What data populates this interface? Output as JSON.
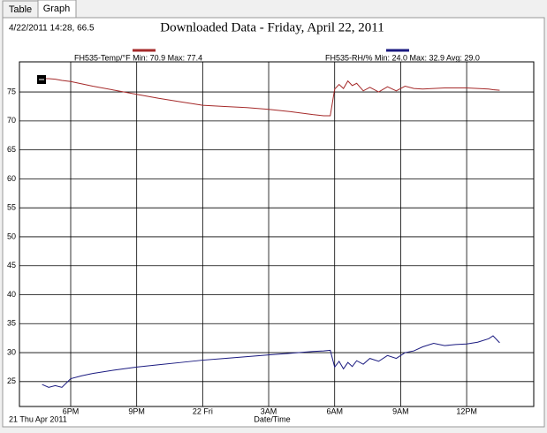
{
  "tabs": [
    "Table",
    "Graph"
  ],
  "cursor_readout": "4/22/2011 14:28, 66.5",
  "chart_data": {
    "type": "line",
    "title": "Downloaded Data - Friday, April 22, 2011",
    "x_label": "Date/Time",
    "date_label": "21 Thu Apr 2011",
    "x": [
      16.7,
      17.0,
      17.3,
      17.6,
      18.0,
      18.5,
      19,
      20,
      21,
      22,
      23,
      24,
      25,
      26,
      27,
      28,
      29,
      29.5,
      29.8,
      30.0,
      30.2,
      30.4,
      30.6,
      30.8,
      31.0,
      31.3,
      31.6,
      32,
      32.4,
      32.8,
      33.2,
      33.6,
      34,
      34.5,
      35,
      35.5,
      36,
      36.5,
      37,
      37.2,
      37.5
    ],
    "series": [
      {
        "name": "FH535-Temp/°F Min: 70.9 Max: 77.4",
        "color": "#a52a2a",
        "values": [
          77.3,
          77.3,
          77.2,
          77.0,
          76.8,
          76.4,
          76.0,
          75.3,
          74.6,
          73.9,
          73.3,
          72.7,
          72.5,
          72.3,
          72.0,
          71.6,
          71.1,
          70.9,
          70.9,
          75.5,
          76.3,
          75.6,
          76.9,
          76.1,
          76.5,
          75.2,
          75.8,
          75.0,
          75.9,
          75.2,
          76.0,
          75.6,
          75.5,
          75.6,
          75.7,
          75.7,
          75.7,
          75.6,
          75.5,
          75.4,
          75.3
        ]
      },
      {
        "name": "FH535-RH/% Min: 24.0 Max: 32.9 Avg: 29.0",
        "color": "#1a1a80",
        "values": [
          24.5,
          24.0,
          24.3,
          24.0,
          25.5,
          26.0,
          26.4,
          27.0,
          27.5,
          27.9,
          28.3,
          28.7,
          29.0,
          29.3,
          29.6,
          29.9,
          30.2,
          30.3,
          30.4,
          27.5,
          28.5,
          27.2,
          28.3,
          27.6,
          28.6,
          28.0,
          29.0,
          28.5,
          29.5,
          29.0,
          30.0,
          30.3,
          31.0,
          31.6,
          31.2,
          31.4,
          31.5,
          31.8,
          32.4,
          32.9,
          31.7
        ]
      }
    ],
    "xlim": [
      15.67,
      39.05
    ],
    "xticks": [
      {
        "value": 18,
        "label": "6PM"
      },
      {
        "value": 21,
        "label": "9PM"
      },
      {
        "value": 24,
        "label": "22 Fri"
      },
      {
        "value": 27,
        "label": "3AM"
      },
      {
        "value": 30,
        "label": "6AM"
      },
      {
        "value": 33,
        "label": "9AM"
      },
      {
        "value": 36,
        "label": "12PM"
      }
    ],
    "ylim": [
      20.7,
      80.2
    ],
    "yticks": [
      25,
      30,
      35,
      40,
      45,
      50,
      55,
      60,
      65,
      70,
      75
    ],
    "grid": true
  }
}
